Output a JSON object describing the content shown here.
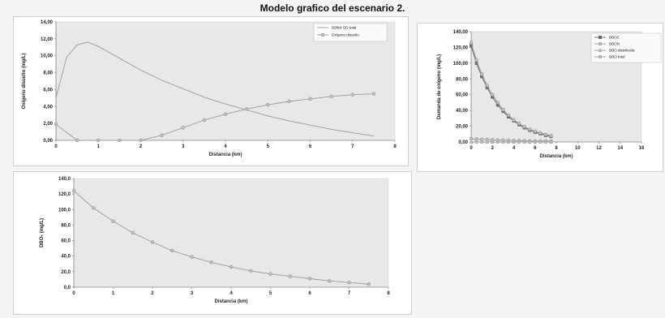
{
  "title": "Modelo grafico del escenario 2.",
  "colors": {
    "plot_bg": "#e8e8e8",
    "line": "#9a9a9a",
    "marker": "#c0c0c0",
    "marker_dark": "#6e6e6e"
  },
  "chart_data": [
    {
      "type": "line",
      "xlabel": "Distancia (km)",
      "ylabel": "Oxígeno disuelto (mg/L)",
      "xlim": [
        0,
        8
      ],
      "ylim": [
        0,
        14
      ],
      "xticks": [
        "0",
        "1",
        "2",
        "3",
        "4",
        "5",
        "6",
        "7",
        "8"
      ],
      "yticks": [
        "0,00",
        "2,00",
        "4,00",
        "6,00",
        "8,00",
        "10,00",
        "12,00",
        "14,00"
      ],
      "grid": false,
      "legend": "top-right",
      "series": [
        {
          "name": "Déficit OD total",
          "marker": "none",
          "x": [
            0,
            0.25,
            0.5,
            0.75,
            1,
            1.5,
            2,
            2.5,
            3,
            3.5,
            4,
            4.5,
            5,
            5.5,
            6,
            6.5,
            7,
            7.5
          ],
          "values": [
            5.0,
            9.8,
            11.3,
            11.6,
            11.1,
            9.7,
            8.3,
            7.1,
            6.1,
            5.1,
            4.3,
            3.6,
            2.9,
            2.3,
            1.8,
            1.3,
            0.9,
            0.5
          ]
        },
        {
          "name": "Oxígeno disuelto",
          "marker": "circle",
          "x": [
            0,
            0.5,
            1,
            1.5,
            2,
            2.5,
            3,
            3.5,
            4,
            4.5,
            5,
            5.5,
            6,
            6.5,
            7,
            7.5
          ],
          "values": [
            1.9,
            0,
            0,
            0,
            0,
            0.6,
            1.5,
            2.4,
            3.1,
            3.7,
            4.2,
            4.6,
            4.9,
            5.2,
            5.4,
            5.5
          ]
        }
      ]
    },
    {
      "type": "line",
      "xlabel": "Distancia (km)",
      "ylabel": "Demanda de oxígeno (mg/L)",
      "xlim": [
        0,
        16
      ],
      "ylim": [
        0,
        140
      ],
      "xticks": [
        "0",
        "2",
        "4",
        "6",
        "8",
        "10",
        "12",
        "14",
        "16"
      ],
      "yticks": [
        "0,00",
        "20,00",
        "40,00",
        "60,00",
        "80,00",
        "100,00",
        "120,00",
        "140,00"
      ],
      "grid": false,
      "legend": "top-right",
      "series": [
        {
          "name": "DBOC",
          "marker": "square",
          "x": [
            0,
            0.5,
            1,
            1.5,
            2,
            2.5,
            3,
            3.5,
            4,
            4.5,
            5,
            5.5,
            6,
            6.5,
            7,
            7.5
          ],
          "values": [
            122,
            100,
            83,
            69,
            57,
            47,
            39,
            32,
            27,
            22,
            18,
            15,
            12.5,
            10.5,
            8.5,
            7
          ]
        },
        {
          "name": "DBON",
          "marker": "circle",
          "x": [
            0,
            0.5,
            1,
            1.5,
            2,
            2.5,
            3,
            3.5,
            4,
            4.5,
            5,
            5.5,
            6,
            6.5,
            7,
            7.5
          ],
          "values": [
            4,
            3.6,
            3.3,
            3.0,
            2.7,
            2.5,
            2.2,
            2.0,
            1.8,
            1.6,
            1.5,
            1.3,
            1.2,
            1.1,
            1.0,
            0.9
          ]
        },
        {
          "name": "DBO distribuida",
          "marker": "triangle",
          "x": [
            0,
            0.5,
            1,
            1.5,
            2,
            2.5,
            3,
            3.5,
            4,
            4.5,
            5,
            5.5,
            6,
            6.5,
            7,
            7.5
          ],
          "values": [
            0,
            0,
            0,
            0,
            0,
            0,
            0,
            0,
            0,
            0,
            0,
            0,
            0,
            0,
            0,
            0
          ]
        },
        {
          "name": "DBO total",
          "marker": "circle",
          "x": [
            0,
            0.5,
            1,
            1.5,
            2,
            2.5,
            3,
            3.5,
            4,
            4.5,
            5,
            5.5,
            6,
            6.5,
            7,
            7.5
          ],
          "values": [
            126,
            104,
            86,
            72,
            60,
            50,
            41,
            34,
            28,
            23.5,
            19.5,
            16,
            13.5,
            11.5,
            9.5,
            8
          ]
        }
      ]
    },
    {
      "type": "line",
      "xlabel": "Distancia (km)",
      "ylabel": "DBO₅ (mg/L)",
      "xlim": [
        0,
        8
      ],
      "ylim": [
        0,
        140
      ],
      "xticks": [
        "0",
        "1",
        "2",
        "3",
        "4",
        "5",
        "6",
        "7",
        "8"
      ],
      "yticks": [
        "0,0",
        "20,0",
        "40,0",
        "60,0",
        "80,0",
        "100,0",
        "120,0",
        "140,0"
      ],
      "grid": false,
      "legend": "none",
      "series": [
        {
          "marker": "circle",
          "x": [
            0,
            0.5,
            1,
            1.5,
            2,
            2.5,
            3,
            3.5,
            4,
            4.5,
            5,
            5.5,
            6,
            6.5,
            7,
            7.5
          ],
          "values": [
            124,
            102,
            85,
            70,
            58,
            47,
            39,
            32,
            26,
            21,
            17,
            14,
            11,
            8,
            6,
            4
          ]
        }
      ]
    }
  ]
}
